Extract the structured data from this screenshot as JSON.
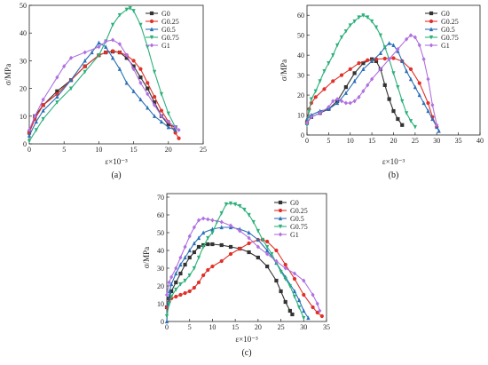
{
  "colors": {
    "G0": "#333333",
    "G0.25": "#e0302a",
    "G0.5": "#2a6fb8",
    "G0.75": "#2bb07a",
    "G1": "#b070e0"
  },
  "chart_data": [
    {
      "type": "line",
      "panel_label": "(a)",
      "xlabel": "ε×10⁻³",
      "ylabel": "σ/MPa",
      "xlim": [
        0,
        25
      ],
      "ylim": [
        0,
        50
      ],
      "xticks": [
        0,
        5,
        10,
        15,
        20,
        25
      ],
      "yticks": [
        0,
        10,
        20,
        30,
        40,
        50
      ],
      "legend_position": "top-right",
      "series": [
        {
          "name": "G0",
          "x": [
            0,
            0.8,
            2,
            4,
            6,
            8,
            10,
            11,
            12,
            13,
            14,
            15,
            16,
            17,
            18,
            19,
            20,
            21
          ],
          "y": [
            4,
            10,
            14,
            19,
            23,
            28,
            32,
            33,
            33.3,
            33,
            31,
            28,
            24,
            20,
            15,
            10,
            7,
            6
          ]
        },
        {
          "name": "G0.25",
          "x": [
            0,
            0.8,
            2,
            4,
            6,
            8,
            10,
            11,
            12,
            13,
            14,
            15,
            16,
            17,
            18,
            19,
            20,
            21,
            21.5
          ],
          "y": [
            4,
            9,
            14,
            18,
            23,
            28,
            32,
            33,
            33.5,
            33,
            32,
            30,
            27,
            22,
            17,
            12,
            8,
            4,
            2
          ]
        },
        {
          "name": "G0.5",
          "x": [
            0,
            1,
            2,
            4,
            6,
            8,
            9,
            10,
            11,
            12,
            13,
            14,
            15,
            16,
            17,
            18,
            19,
            20,
            21
          ],
          "y": [
            3,
            8,
            12,
            17,
            23,
            30,
            33,
            36.5,
            35,
            31,
            27,
            22,
            19,
            16,
            13,
            10,
            8,
            6,
            5
          ]
        },
        {
          "name": "G0.75",
          "x": [
            0,
            1,
            2,
            4,
            6,
            8,
            10,
            11,
            12,
            13,
            14,
            14.5,
            15,
            16,
            17,
            18,
            19,
            20,
            21
          ],
          "y": [
            1,
            5,
            9,
            15,
            20,
            26,
            32,
            37,
            43,
            46.5,
            48.5,
            49,
            48,
            43,
            35,
            26,
            18,
            11,
            6
          ]
        },
        {
          "name": "G1",
          "x": [
            0,
            0.8,
            2,
            4,
            5,
            6,
            8,
            10,
            11,
            12,
            13,
            14,
            15,
            16,
            17,
            18,
            19,
            20,
            21,
            21.5
          ],
          "y": [
            5,
            10,
            16,
            24,
            28,
            31,
            33,
            35,
            37,
            37.5,
            36,
            32,
            27,
            22,
            18,
            14,
            10,
            8,
            6,
            5
          ]
        }
      ]
    },
    {
      "type": "line",
      "panel_label": "(b)",
      "xlabel": "ε×10⁻³",
      "ylabel": "σ/MPa",
      "xlim": [
        0,
        40
      ],
      "ylim": [
        0,
        65
      ],
      "xticks": [
        0,
        5,
        10,
        15,
        20,
        25,
        30,
        35,
        40
      ],
      "yticks": [
        0,
        10,
        20,
        30,
        40,
        50,
        60
      ],
      "legend_position": "top-right",
      "series": [
        {
          "name": "G0",
          "x": [
            0,
            1,
            3,
            5,
            7,
            9,
            11,
            13,
            15,
            16,
            17,
            18,
            19,
            20,
            21,
            22
          ],
          "y": [
            6,
            9,
            11,
            13,
            17,
            24,
            31,
            36,
            38,
            37,
            33,
            25,
            18,
            12,
            8,
            5
          ]
        },
        {
          "name": "G0.25",
          "x": [
            0,
            0.5,
            1,
            2,
            4,
            6,
            8,
            10,
            12,
            14,
            16,
            18,
            20,
            22,
            24,
            26,
            28,
            29,
            30
          ],
          "y": [
            7,
            13,
            16,
            19,
            23,
            27,
            30,
            33,
            36,
            37.5,
            38,
            38.3,
            38.5,
            37,
            33,
            26,
            16,
            9,
            4
          ]
        },
        {
          "name": "G0.5",
          "x": [
            0,
            1,
            3,
            5,
            7,
            9,
            11,
            13,
            15,
            17,
            18,
            19,
            20,
            21,
            22,
            23,
            24,
            25,
            26,
            27,
            28,
            29,
            30,
            30.5
          ],
          "y": [
            8,
            10,
            12,
            13,
            16,
            21,
            27,
            33,
            37,
            41,
            44,
            46,
            45,
            42,
            37,
            32,
            28,
            24,
            20,
            16,
            12,
            8,
            4,
            2
          ]
        },
        {
          "name": "G0.75",
          "x": [
            0,
            0.5,
            1,
            2,
            3,
            4,
            5,
            6,
            7,
            8,
            9,
            10,
            11,
            12,
            13,
            14,
            15,
            16,
            17,
            18,
            19,
            20,
            21,
            22,
            23,
            24,
            25
          ],
          "y": [
            5,
            12,
            18,
            22,
            27,
            32,
            36,
            40,
            45,
            49,
            52,
            55,
            57,
            59,
            60,
            59,
            57,
            54,
            50,
            44,
            38,
            31,
            24,
            17,
            11,
            7,
            4
          ]
        },
        {
          "name": "G1",
          "x": [
            0,
            1,
            3,
            5,
            6,
            7,
            8,
            9,
            10,
            11,
            12,
            13,
            14,
            15,
            17,
            19,
            21,
            23,
            24,
            25,
            26,
            27,
            28,
            29,
            30
          ],
          "y": [
            6,
            9,
            11,
            14,
            17,
            18,
            17,
            16,
            16,
            17,
            19,
            22,
            25,
            28,
            33,
            38,
            43,
            48,
            50,
            49,
            45,
            38,
            28,
            15,
            5
          ]
        }
      ]
    },
    {
      "type": "line",
      "panel_label": "(c)",
      "xlabel": "ε×10⁻³",
      "ylabel": "σ/MPa",
      "xlim": [
        0,
        35
      ],
      "ylim": [
        0,
        72
      ],
      "xticks": [
        0,
        5,
        10,
        15,
        20,
        25,
        30,
        35
      ],
      "yticks": [
        0,
        10,
        20,
        30,
        40,
        50,
        60,
        70
      ],
      "legend_position": "top-right",
      "series": [
        {
          "name": "G0",
          "x": [
            0,
            0.5,
            1,
            2,
            3,
            4,
            5,
            6,
            7,
            8,
            9,
            10,
            12,
            14,
            16,
            18,
            20,
            22,
            24,
            25,
            26,
            27,
            27.5
          ],
          "y": [
            8,
            13,
            17,
            22,
            27,
            32,
            36,
            39,
            42,
            43,
            43.5,
            43.5,
            43,
            42,
            41,
            39,
            36,
            31,
            23,
            17,
            11,
            6,
            4
          ]
        },
        {
          "name": "G0.25",
          "x": [
            0,
            0.5,
            1,
            2,
            3,
            4,
            5,
            6,
            7,
            8,
            9,
            10,
            12,
            14,
            16,
            18,
            20,
            21,
            22,
            24,
            26,
            28,
            30,
            32,
            33,
            34
          ],
          "y": [
            8,
            11,
            13,
            14,
            15,
            16,
            17,
            19,
            22,
            26,
            29,
            31,
            34,
            38,
            41,
            44,
            46,
            46,
            45,
            40,
            32,
            24,
            15,
            8,
            5,
            3
          ]
        },
        {
          "name": "G0.5",
          "x": [
            0,
            0.3,
            0.6,
            1,
            2,
            3,
            4,
            5,
            6,
            7,
            8,
            10,
            12,
            14,
            16,
            18,
            20,
            22,
            24,
            26,
            28,
            29,
            30,
            31
          ],
          "y": [
            0,
            10,
            17,
            21,
            27,
            32,
            36,
            40,
            44,
            47,
            50,
            52,
            53,
            53,
            52,
            50,
            46,
            40,
            33,
            25,
            17,
            12,
            6,
            2
          ]
        },
        {
          "name": "G0.75",
          "x": [
            0,
            0.5,
            1,
            2,
            3,
            4,
            5,
            6,
            7,
            8,
            9,
            10,
            11,
            12,
            13,
            14,
            15,
            16,
            17,
            18,
            19,
            20,
            21,
            22,
            23,
            24,
            25,
            26,
            27,
            28,
            29,
            30
          ],
          "y": [
            3,
            10,
            14,
            18,
            21,
            23,
            26,
            30,
            36,
            42,
            47,
            50,
            56,
            61,
            66,
            66.5,
            66,
            65,
            63,
            60,
            56,
            51,
            46,
            42,
            38,
            33,
            28,
            24,
            20,
            14,
            8,
            2
          ]
        },
        {
          "name": "G1",
          "x": [
            0,
            0.5,
            1,
            2,
            3,
            4,
            5,
            6,
            7,
            8,
            9,
            10,
            12,
            14,
            16,
            18,
            20,
            22,
            24,
            26,
            28,
            30,
            32,
            33,
            33.5
          ],
          "y": [
            15,
            22,
            25,
            30,
            36,
            42,
            48,
            53,
            57,
            58,
            57.5,
            57,
            56,
            54,
            51,
            47,
            42,
            38,
            34,
            30,
            27,
            23,
            15,
            10,
            6
          ]
        }
      ]
    }
  ]
}
